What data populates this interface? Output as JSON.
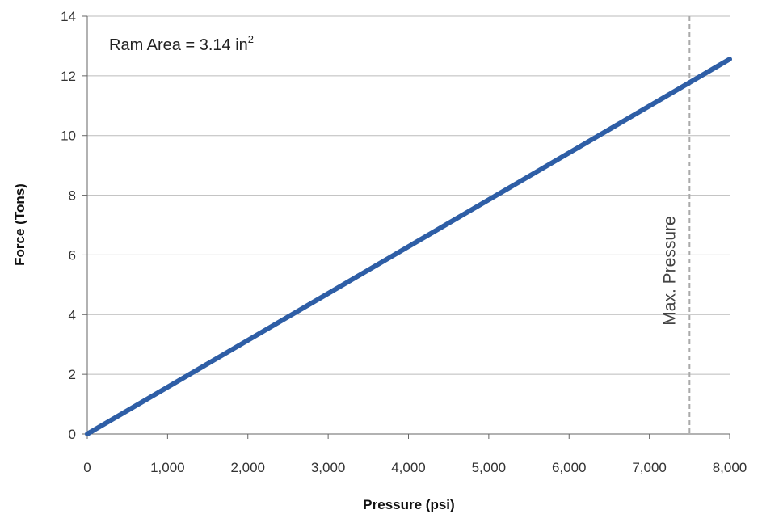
{
  "chart_data": {
    "type": "line",
    "title": "",
    "xlabel": "Pressure (psi)",
    "ylabel": "Force (Tons)",
    "xlim": [
      0,
      8000
    ],
    "ylim": [
      0,
      14
    ],
    "x_ticks": [
      0,
      1000,
      2000,
      3000,
      4000,
      5000,
      6000,
      7000,
      8000
    ],
    "x_tick_labels": [
      "0",
      "1,000",
      "2,000",
      "3,000",
      "4,000",
      "5,000",
      "6,000",
      "7,000",
      "8,000"
    ],
    "y_ticks": [
      0,
      2,
      4,
      6,
      8,
      10,
      12,
      14
    ],
    "y_tick_labels": [
      "0",
      "2",
      "4",
      "6",
      "8",
      "10",
      "12",
      "14"
    ],
    "grid": "horizontal",
    "legend": "none",
    "series": [
      {
        "color": "#2e5ea6",
        "x": [
          0,
          8000
        ],
        "y": [
          0,
          12.56
        ]
      }
    ],
    "annotations": {
      "ram_area_text": "Ram Area = 3.14 in",
      "ram_area_superscript": "2",
      "max_pressure_label": "Max. Pressure",
      "max_pressure_x": 7500
    },
    "colors": {
      "series_line": "#2e5ea6",
      "gridline": "#bbbbbb",
      "axis": "#666666",
      "marker_line": "#aaaaaa"
    }
  }
}
